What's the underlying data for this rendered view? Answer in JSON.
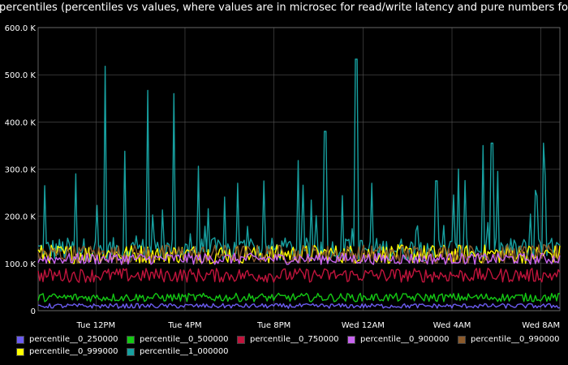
{
  "chart_data": {
    "type": "line",
    "title": "ment percentiles (percentiles vs values, where values are in microsec for read/write latency and pure numbers fo",
    "xlabel": "",
    "ylabel": "",
    "ylim": [
      0,
      600000
    ],
    "yticks": [
      "0",
      "100.0 K",
      "200.0 K",
      "300.0 K",
      "400.0 K",
      "500.0 K",
      "600.0 K"
    ],
    "xticks": [
      "Tue 12PM",
      "Tue  4PM",
      "Tue  8PM",
      "Wed 12AM",
      "Wed  4AM",
      "Wed  8AM"
    ],
    "x_range_hours": [
      9.4,
      32.85
    ],
    "grid": true,
    "legend_position": "bottom",
    "series": [
      {
        "name": "percentile__0_250000",
        "color": "#6b5cf0",
        "base": 10000,
        "noise": 5000,
        "spike": 0,
        "spikes": []
      },
      {
        "name": "percentile__0_500000",
        "color": "#14c814",
        "base": 28000,
        "noise": 9000,
        "spike": 0,
        "spikes": []
      },
      {
        "name": "percentile__0_750000",
        "color": "#c0143c",
        "base": 75000,
        "noise": 15000,
        "spike": 0,
        "spikes": []
      },
      {
        "name": "percentile__0_900000",
        "color": "#c864f0",
        "base": 110000,
        "noise": 12000,
        "spike": 0,
        "spikes": []
      },
      {
        "name": "percentile__0_990000",
        "color": "#8b5a2b",
        "base": 120000,
        "noise": 20000,
        "spike": 0,
        "spikes": []
      },
      {
        "name": "percentile__0_999000",
        "color": "#ffff00",
        "base": 120000,
        "noise": 20000,
        "spike": 0,
        "spikes": []
      },
      {
        "name": "percentile__1_000000",
        "color": "#17a0a0",
        "base": 130000,
        "noise": 25000,
        "spike": 150000,
        "spikes": [
          [
            9.7,
            265000
          ],
          [
            11.1,
            290000
          ],
          [
            12.4,
            518000
          ],
          [
            13.3,
            338000
          ],
          [
            14.3,
            467000
          ],
          [
            15.5,
            460000
          ],
          [
            16.6,
            306000
          ],
          [
            18.4,
            270000
          ],
          [
            21.1,
            318000
          ],
          [
            22.3,
            380000
          ],
          [
            23.7,
            533000
          ],
          [
            24.4,
            270000
          ],
          [
            27.3,
            275000
          ],
          [
            28.3,
            300000
          ],
          [
            29.4,
            350000
          ],
          [
            29.8,
            355000
          ],
          [
            32.1,
            355000
          ]
        ]
      }
    ]
  }
}
